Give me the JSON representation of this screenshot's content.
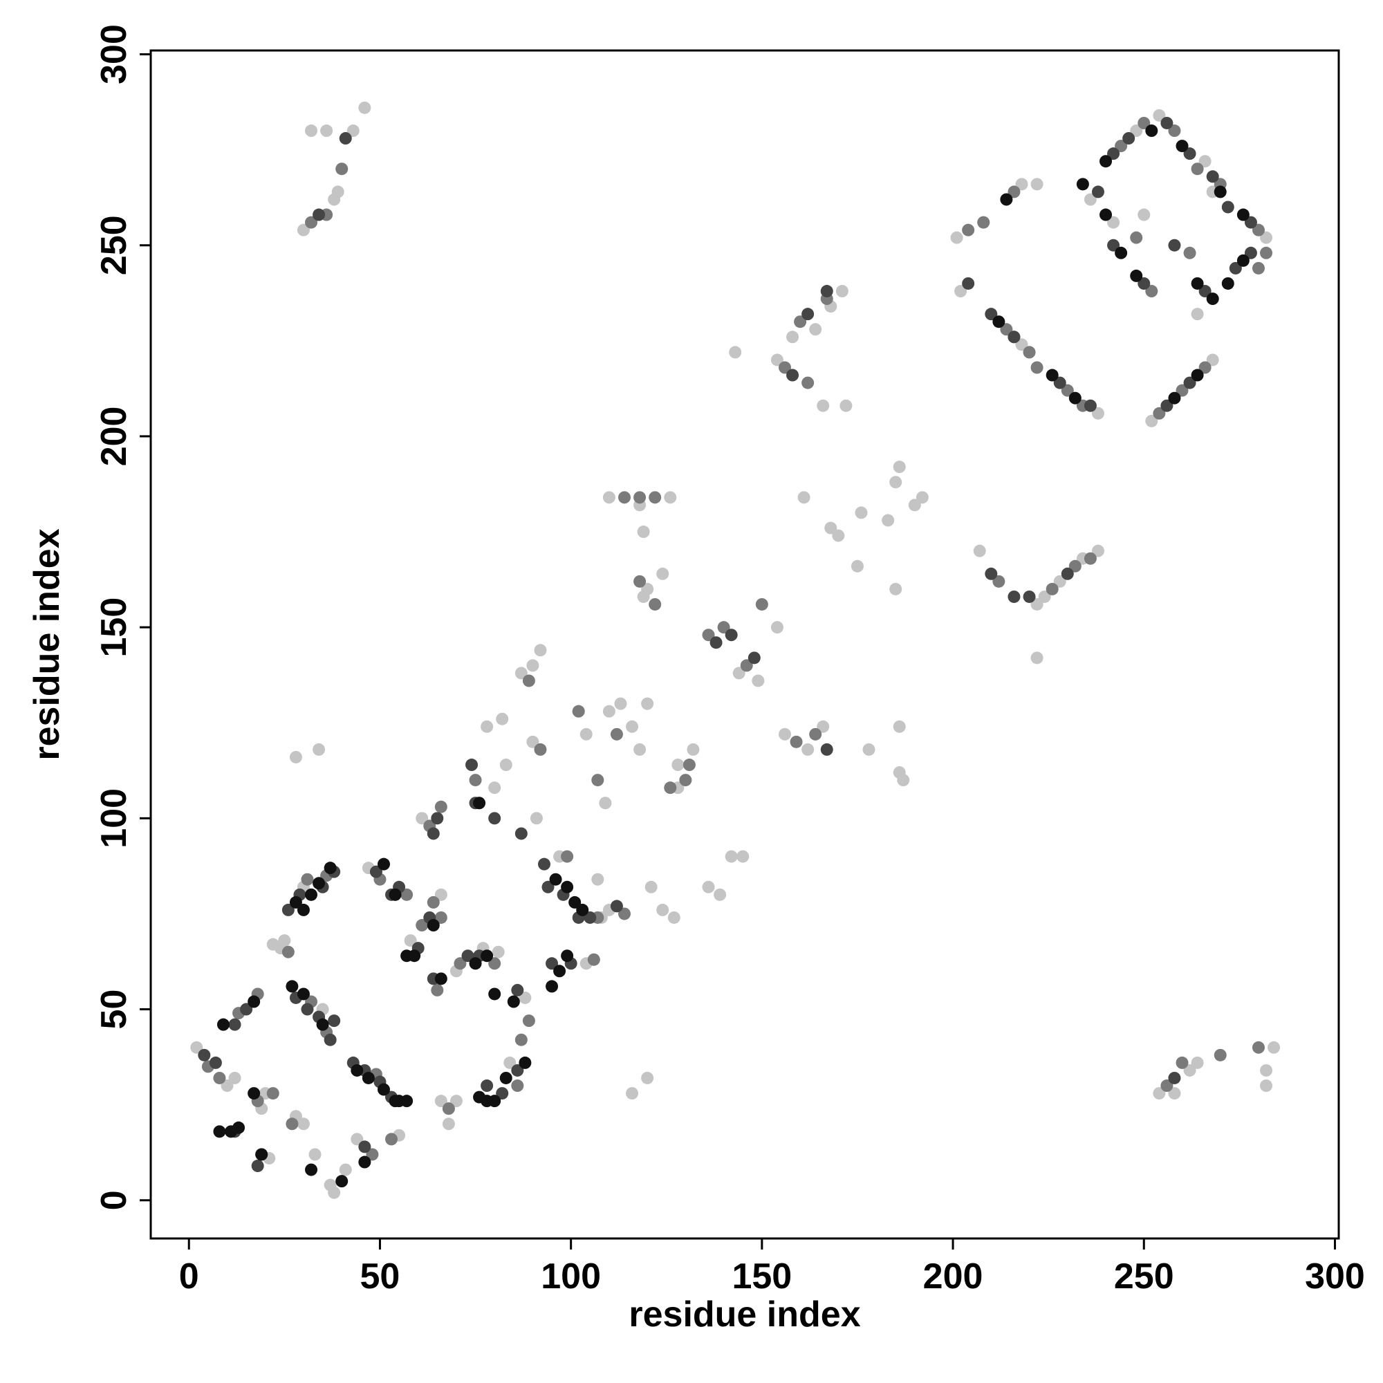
{
  "chart_data": {
    "type": "scatter",
    "xlabel": "residue index",
    "ylabel": "residue index",
    "xlim": [
      -10,
      301
    ],
    "ylim": [
      -10,
      301
    ],
    "xticks": [
      0,
      50,
      100,
      150,
      200,
      250,
      300
    ],
    "yticks": [
      0,
      50,
      100,
      150,
      200,
      250,
      300
    ],
    "series": [
      {
        "color": "#c4c4c4",
        "x": [
          2,
          10,
          12,
          21,
          20,
          19,
          28,
          30,
          33,
          37,
          38,
          41,
          35,
          44,
          55,
          22,
          24,
          25,
          30,
          47,
          58,
          66,
          61,
          68,
          70,
          77,
          81,
          88,
          91,
          66,
          70,
          68,
          84,
          108,
          110,
          97,
          104,
          116,
          120,
          121,
          124,
          127,
          110,
          113,
          120,
          116,
          118,
          128,
          128,
          132,
          110,
          118,
          126,
          119,
          120,
          119,
          124,
          102,
          104,
          109,
          107,
          87,
          90,
          92,
          90,
          80,
          78,
          82,
          83,
          30,
          38,
          39,
          43,
          46,
          32,
          36,
          34,
          28,
          136,
          139,
          142,
          145,
          144,
          149,
          154,
          156,
          162,
          166,
          143,
          154,
          158,
          164,
          168,
          171,
          166,
          172,
          161,
          168,
          170,
          176,
          175,
          183,
          185,
          186,
          190,
          192,
          185,
          178,
          186,
          187,
          186,
          207,
          222,
          224,
          228,
          234,
          238,
          222,
          201,
          208,
          218,
          222,
          202,
          218,
          220,
          238,
          252,
          268,
          236,
          242,
          248,
          254,
          266,
          282,
          250,
          264,
          268,
          254,
          262,
          264,
          282,
          284,
          282,
          258
        ],
        "y": [
          40,
          30,
          32,
          11,
          28,
          24,
          22,
          20,
          12,
          4,
          2,
          8,
          50,
          16,
          17,
          67,
          66,
          68,
          82,
          87,
          68,
          26,
          100,
          20,
          60,
          66,
          65,
          53,
          100,
          80,
          26,
          24,
          36,
          74,
          76,
          90,
          62,
          28,
          32,
          82,
          76,
          74,
          128,
          130,
          130,
          124,
          118,
          114,
          108,
          118,
          184,
          182,
          184,
          175,
          160,
          158,
          164,
          128,
          122,
          104,
          84,
          138,
          140,
          144,
          120,
          108,
          124,
          126,
          114,
          254,
          262,
          264,
          280,
          286,
          280,
          280,
          118,
          116,
          82,
          80,
          90,
          90,
          138,
          136,
          150,
          122,
          118,
          124,
          222,
          220,
          226,
          228,
          234,
          238,
          208,
          208,
          184,
          176,
          174,
          180,
          166,
          178,
          188,
          192,
          182,
          184,
          160,
          118,
          112,
          110,
          124,
          170,
          156,
          158,
          162,
          168,
          170,
          142,
          252,
          256,
          266,
          266,
          238,
          224,
          222,
          206,
          204,
          220,
          262,
          256,
          280,
          284,
          272,
          252,
          258,
          232,
          264,
          28,
          34,
          36,
          34,
          40,
          30,
          28
        ]
      },
      {
        "color": "#7a7a7a",
        "x": [
          5,
          8,
          13,
          18,
          18,
          22,
          27,
          32,
          36,
          49,
          53,
          48,
          26,
          31,
          36,
          50,
          57,
          61,
          66,
          64,
          63,
          66,
          65,
          71,
          80,
          89,
          75,
          87,
          68,
          86,
          107,
          114,
          102,
          106,
          99,
          118,
          112,
          131,
          130,
          126,
          114,
          122,
          118,
          122,
          107,
          89,
          92,
          32,
          40,
          36,
          136,
          140,
          146,
          150,
          159,
          164,
          156,
          160,
          167,
          162,
          212,
          226,
          232,
          236,
          204,
          208,
          216,
          214,
          220,
          222,
          216,
          230,
          234,
          254,
          260,
          266,
          244,
          250,
          258,
          264,
          280,
          252,
          248,
          262,
          280,
          282,
          270,
          256,
          260,
          270,
          280
        ],
        "y": [
          35,
          32,
          49,
          54,
          26,
          28,
          20,
          52,
          44,
          33,
          16,
          12,
          65,
          84,
          85,
          84,
          80,
          72,
          74,
          78,
          98,
          103,
          55,
          62,
          62,
          47,
          110,
          42,
          24,
          30,
          74,
          75,
          128,
          63,
          90,
          184,
          122,
          114,
          110,
          108,
          184,
          184,
          162,
          156,
          110,
          136,
          118,
          256,
          270,
          258,
          148,
          150,
          140,
          156,
          120,
          122,
          218,
          230,
          236,
          214,
          162,
          160,
          166,
          168,
          254,
          256,
          264,
          228,
          222,
          218,
          226,
          212,
          208,
          206,
          212,
          218,
          276,
          282,
          280,
          270,
          254,
          238,
          252,
          248,
          244,
          248,
          266,
          30,
          36,
          38,
          40
        ]
      },
      {
        "color": "#454545",
        "x": [
          4,
          7,
          12,
          15,
          18,
          12,
          19,
          28,
          31,
          34,
          37,
          38,
          43,
          46,
          50,
          53,
          46,
          26,
          29,
          35,
          38,
          49,
          53,
          55,
          60,
          63,
          65,
          64,
          64,
          73,
          76,
          86,
          74,
          75,
          80,
          87,
          78,
          82,
          86,
          94,
          98,
          102,
          105,
          112,
          95,
          100,
          93,
          34,
          41,
          138,
          142,
          148,
          167,
          158,
          162,
          167,
          210,
          216,
          220,
          230,
          204,
          210,
          216,
          228,
          236,
          256,
          262,
          238,
          242,
          246,
          256,
          262,
          268,
          272,
          278,
          242,
          250,
          258,
          266,
          274,
          278,
          258
        ],
        "y": [
          38,
          36,
          46,
          50,
          9,
          18,
          12,
          53,
          50,
          48,
          42,
          47,
          36,
          34,
          31,
          27,
          14,
          76,
          80,
          82,
          86,
          86,
          80,
          82,
          66,
          74,
          100,
          96,
          58,
          64,
          64,
          55,
          114,
          104,
          100,
          96,
          30,
          28,
          34,
          82,
          80,
          74,
          74,
          77,
          62,
          62,
          88,
          258,
          278,
          146,
          148,
          142,
          118,
          216,
          232,
          238,
          164,
          158,
          158,
          164,
          240,
          232,
          226,
          214,
          208,
          208,
          214,
          264,
          274,
          278,
          282,
          274,
          268,
          260,
          256,
          250,
          240,
          250,
          238,
          244,
          248,
          32
        ]
      },
      {
        "color": "#111111",
        "x": [
          9,
          17,
          8,
          11,
          13,
          17,
          19,
          32,
          40,
          27,
          30,
          35,
          44,
          47,
          51,
          54,
          55,
          57,
          46,
          28,
          30,
          32,
          34,
          37,
          51,
          54,
          57,
          59,
          64,
          66,
          75,
          78,
          80,
          85,
          76,
          76,
          78,
          80,
          83,
          88,
          96,
          99,
          101,
          103,
          95,
          97,
          99,
          214,
          212,
          226,
          232,
          258,
          264,
          234,
          240,
          240,
          252,
          260,
          270,
          276,
          244,
          248,
          264,
          268,
          272,
          276
        ],
        "y": [
          46,
          52,
          18,
          18,
          19,
          28,
          12,
          8,
          5,
          56,
          54,
          46,
          34,
          32,
          29,
          26,
          26,
          26,
          10,
          78,
          76,
          80,
          83,
          87,
          88,
          80,
          64,
          64,
          72,
          58,
          62,
          64,
          54,
          52,
          104,
          27,
          26,
          26,
          32,
          36,
          84,
          82,
          78,
          76,
          56,
          60,
          64,
          262,
          230,
          216,
          210,
          210,
          216,
          266,
          258,
          272,
          280,
          276,
          264,
          258,
          248,
          242,
          240,
          236,
          240,
          246
        ]
      }
    ]
  }
}
